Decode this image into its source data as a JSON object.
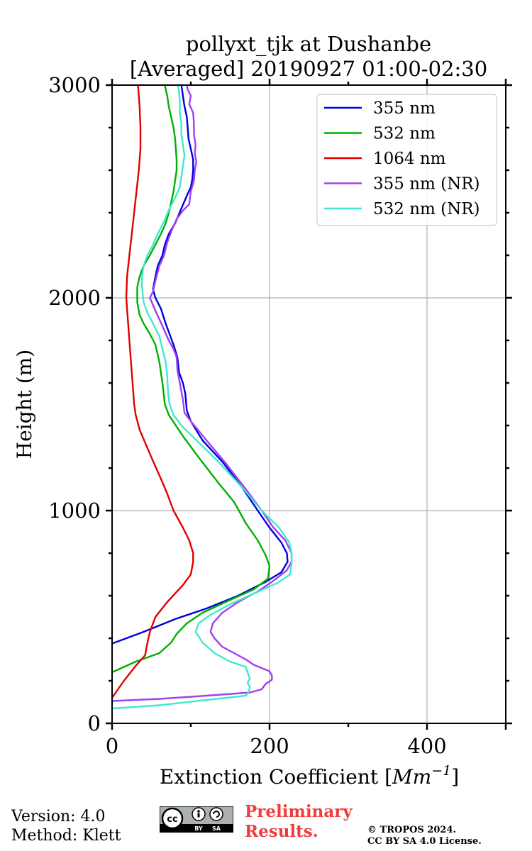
{
  "chart_data": {
    "type": "line",
    "title": "pollyxt_tjk at Dushanbe",
    "subtitle": "[Averaged] 20190927 01:00-02:30",
    "xlabel": "Extinction Coefficient [Mm^{-1}]",
    "xlabel_main": "Extinction Coefficient ",
    "xlabel_unit": "Mm",
    "xlabel_exp": "−1",
    "xlabel_open": "[",
    "xlabel_close": "]",
    "ylabel": "Height (m)",
    "xlim": [
      0,
      500
    ],
    "ylim": [
      0,
      3000
    ],
    "xticks": [
      0,
      200,
      400
    ],
    "xtick_labels": [
      "0",
      "200",
      "400"
    ],
    "yticks": [
      0,
      1000,
      2000,
      3000
    ],
    "ytick_labels": [
      "0",
      "1000",
      "2000",
      "3000"
    ],
    "grid": true,
    "legend_position": "top-right",
    "series": [
      {
        "name": "355 nm",
        "color": "#0000e0",
        "points": [
          [
            0,
            375
          ],
          [
            40,
            430
          ],
          [
            80,
            490
          ],
          [
            120,
            540
          ],
          [
            160,
            600
          ],
          [
            195,
            665
          ],
          [
            215,
            710
          ],
          [
            223,
            760
          ],
          [
            222,
            800
          ],
          [
            215,
            850
          ],
          [
            200,
            920
          ],
          [
            185,
            1000
          ],
          [
            165,
            1110
          ],
          [
            140,
            1230
          ],
          [
            115,
            1330
          ],
          [
            100,
            1420
          ],
          [
            95,
            1470
          ],
          [
            93,
            1550
          ],
          [
            90,
            1600
          ],
          [
            85,
            1650
          ],
          [
            83,
            1720
          ],
          [
            78,
            1780
          ],
          [
            73,
            1830
          ],
          [
            68,
            1880
          ],
          [
            62,
            1950
          ],
          [
            55,
            2000
          ],
          [
            52,
            2040
          ],
          [
            55,
            2100
          ],
          [
            58,
            2150
          ],
          [
            64,
            2200
          ],
          [
            67,
            2250
          ],
          [
            72,
            2300
          ],
          [
            80,
            2350
          ],
          [
            88,
            2420
          ],
          [
            95,
            2480
          ],
          [
            100,
            2520
          ],
          [
            102,
            2560
          ],
          [
            103,
            2600
          ],
          [
            103,
            2650
          ],
          [
            100,
            2700
          ],
          [
            97,
            2750
          ],
          [
            96,
            2800
          ],
          [
            95,
            2850
          ],
          [
            92,
            2900
          ],
          [
            90,
            2950
          ],
          [
            88,
            3000
          ]
        ]
      },
      {
        "name": "532 nm",
        "color": "#00b000",
        "points": [
          [
            0,
            240
          ],
          [
            30,
            290
          ],
          [
            60,
            330
          ],
          [
            75,
            380
          ],
          [
            82,
            420
          ],
          [
            95,
            470
          ],
          [
            115,
            520
          ],
          [
            150,
            580
          ],
          [
            180,
            630
          ],
          [
            198,
            680
          ],
          [
            200,
            740
          ],
          [
            195,
            790
          ],
          [
            185,
            860
          ],
          [
            170,
            940
          ],
          [
            155,
            1040
          ],
          [
            135,
            1130
          ],
          [
            110,
            1250
          ],
          [
            90,
            1350
          ],
          [
            72,
            1450
          ],
          [
            67,
            1500
          ],
          [
            64,
            1600
          ],
          [
            60,
            1700
          ],
          [
            55,
            1780
          ],
          [
            48,
            1830
          ],
          [
            40,
            1880
          ],
          [
            35,
            1920
          ],
          [
            32,
            1980
          ],
          [
            32,
            2050
          ],
          [
            35,
            2100
          ],
          [
            40,
            2150
          ],
          [
            48,
            2200
          ],
          [
            55,
            2250
          ],
          [
            62,
            2300
          ],
          [
            68,
            2350
          ],
          [
            72,
            2400
          ],
          [
            75,
            2450
          ],
          [
            78,
            2500
          ],
          [
            80,
            2550
          ],
          [
            82,
            2600
          ],
          [
            82,
            2650
          ],
          [
            81,
            2700
          ],
          [
            80,
            2750
          ],
          [
            78,
            2800
          ],
          [
            75,
            2850
          ],
          [
            72,
            2900
          ],
          [
            70,
            2950
          ],
          [
            67,
            3000
          ]
        ]
      },
      {
        "name": "1064 nm",
        "color": "#e00000",
        "points": [
          [
            0,
            120
          ],
          [
            15,
            200
          ],
          [
            30,
            270
          ],
          [
            42,
            320
          ],
          [
            45,
            380
          ],
          [
            48,
            430
          ],
          [
            55,
            500
          ],
          [
            70,
            570
          ],
          [
            90,
            650
          ],
          [
            100,
            700
          ],
          [
            103,
            760
          ],
          [
            103,
            800
          ],
          [
            98,
            860
          ],
          [
            90,
            920
          ],
          [
            78,
            1000
          ],
          [
            70,
            1080
          ],
          [
            62,
            1150
          ],
          [
            50,
            1250
          ],
          [
            35,
            1380
          ],
          [
            30,
            1450
          ],
          [
            28,
            1500
          ],
          [
            26,
            1600
          ],
          [
            24,
            1700
          ],
          [
            22,
            1800
          ],
          [
            20,
            1900
          ],
          [
            18,
            2000
          ],
          [
            19,
            2100
          ],
          [
            22,
            2200
          ],
          [
            25,
            2300
          ],
          [
            28,
            2400
          ],
          [
            31,
            2500
          ],
          [
            34,
            2600
          ],
          [
            36,
            2700
          ],
          [
            36,
            2800
          ],
          [
            35,
            2900
          ],
          [
            33,
            3000
          ]
        ]
      },
      {
        "name": "355 nm (NR)",
        "color": "#a040f0",
        "points": [
          [
            0,
            105
          ],
          [
            60,
            115
          ],
          [
            120,
            130
          ],
          [
            175,
            145
          ],
          [
            190,
            160
          ],
          [
            195,
            185
          ],
          [
            203,
            205
          ],
          [
            203,
            225
          ],
          [
            200,
            245
          ],
          [
            190,
            260
          ],
          [
            180,
            275
          ],
          [
            170,
            300
          ],
          [
            155,
            330
          ],
          [
            140,
            360
          ],
          [
            130,
            400
          ],
          [
            125,
            430
          ],
          [
            128,
            470
          ],
          [
            140,
            520
          ],
          [
            160,
            570
          ],
          [
            185,
            620
          ],
          [
            205,
            670
          ],
          [
            222,
            720
          ],
          [
            228,
            760
          ],
          [
            228,
            800
          ],
          [
            220,
            860
          ],
          [
            205,
            920
          ],
          [
            190,
            1000
          ],
          [
            170,
            1100
          ],
          [
            145,
            1220
          ],
          [
            120,
            1330
          ],
          [
            100,
            1420
          ],
          [
            92,
            1460
          ],
          [
            90,
            1520
          ],
          [
            88,
            1560
          ],
          [
            85,
            1620
          ],
          [
            83,
            1660
          ],
          [
            82,
            1720
          ],
          [
            78,
            1760
          ],
          [
            72,
            1800
          ],
          [
            66,
            1850
          ],
          [
            60,
            1900
          ],
          [
            55,
            1940
          ],
          [
            48,
            2000
          ],
          [
            52,
            2030
          ],
          [
            55,
            2080
          ],
          [
            60,
            2150
          ],
          [
            66,
            2200
          ],
          [
            70,
            2260
          ],
          [
            76,
            2320
          ],
          [
            82,
            2370
          ],
          [
            90,
            2410
          ],
          [
            98,
            2440
          ],
          [
            100,
            2500
          ],
          [
            104,
            2550
          ],
          [
            105,
            2600
          ],
          [
            107,
            2640
          ],
          [
            105,
            2680
          ],
          [
            106,
            2720
          ],
          [
            104,
            2770
          ],
          [
            104,
            2820
          ],
          [
            103,
            2870
          ],
          [
            98,
            2910
          ],
          [
            100,
            2950
          ],
          [
            96,
            2980
          ],
          [
            95,
            3000
          ]
        ]
      },
      {
        "name": "532 nm (NR)",
        "color": "#40e8d0",
        "points": [
          [
            0,
            70
          ],
          [
            60,
            85
          ],
          [
            120,
            110
          ],
          [
            170,
            130
          ],
          [
            173,
            145
          ],
          [
            175,
            170
          ],
          [
            172,
            190
          ],
          [
            175,
            210
          ],
          [
            172,
            240
          ],
          [
            170,
            265
          ],
          [
            150,
            290
          ],
          [
            130,
            330
          ],
          [
            115,
            380
          ],
          [
            106,
            430
          ],
          [
            110,
            470
          ],
          [
            125,
            510
          ],
          [
            150,
            560
          ],
          [
            180,
            610
          ],
          [
            210,
            660
          ],
          [
            226,
            700
          ],
          [
            228,
            750
          ],
          [
            228,
            800
          ],
          [
            225,
            850
          ],
          [
            212,
            920
          ],
          [
            190,
            1000
          ],
          [
            165,
            1110
          ],
          [
            135,
            1230
          ],
          [
            110,
            1320
          ],
          [
            88,
            1400
          ],
          [
            78,
            1450
          ],
          [
            73,
            1500
          ],
          [
            71,
            1560
          ],
          [
            70,
            1640
          ],
          [
            68,
            1700
          ],
          [
            64,
            1760
          ],
          [
            60,
            1820
          ],
          [
            52,
            1880
          ],
          [
            45,
            1930
          ],
          [
            40,
            1980
          ],
          [
            38,
            2050
          ],
          [
            38,
            2100
          ],
          [
            40,
            2150
          ],
          [
            45,
            2200
          ],
          [
            52,
            2250
          ],
          [
            58,
            2300
          ],
          [
            66,
            2360
          ],
          [
            73,
            2420
          ],
          [
            80,
            2470
          ],
          [
            86,
            2520
          ],
          [
            88,
            2570
          ],
          [
            90,
            2620
          ],
          [
            92,
            2670
          ],
          [
            90,
            2720
          ],
          [
            88,
            2770
          ],
          [
            88,
            2820
          ],
          [
            86,
            2870
          ],
          [
            86,
            2920
          ],
          [
            85,
            2970
          ],
          [
            84,
            3000
          ]
        ]
      }
    ]
  },
  "footer": {
    "version": "Version: 4.0",
    "method": "Method: Klett",
    "preliminary_line1": "Preliminary",
    "preliminary_line2": "Results.",
    "copyright_line1": "© TROPOS 2024.",
    "copyright_line2": "CC BY SA 4.0 License.",
    "license_badge": "cc-by-sa",
    "license_cc": "cc",
    "license_by": "BY",
    "license_sa": "SA"
  }
}
